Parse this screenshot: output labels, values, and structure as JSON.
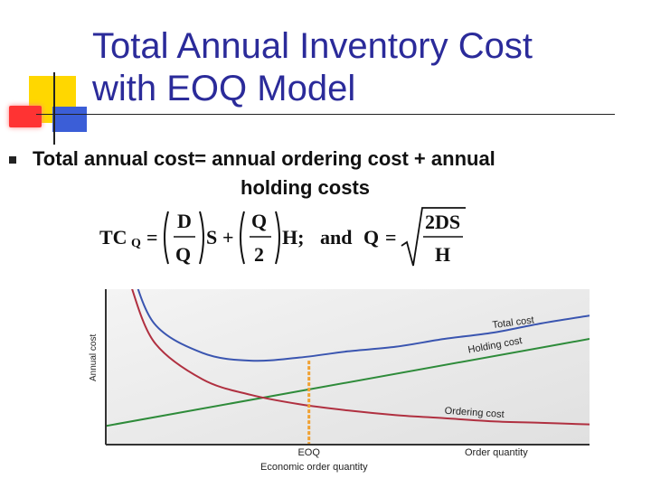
{
  "slide": {
    "title_line1": "Total Annual Inventory Cost",
    "title_line2": "with EOQ Model",
    "bullet_line1": "Total annual cost= annual ordering cost + annual",
    "bullet_line2": "holding  costs"
  },
  "formula": {
    "lhs": "TC",
    "lhs_sub": "Q",
    "eq": "=",
    "f1_num": "D",
    "f1_den": "Q",
    "s": "S",
    "plus": "+",
    "f2_num": "Q",
    "f2_den": "2",
    "h": "H;",
    "and": "and",
    "q": "Q",
    "eq2": "=",
    "root_num": "2DS",
    "root_den": "H"
  },
  "colors": {
    "title": "#2b2b9a",
    "total_cost": "#3a55b0",
    "holding_cost": "#2e8b3a",
    "ordering_cost": "#b03040",
    "eoq_line": "#f0a030",
    "plot_bg": "#eaeaea",
    "axis": "#333333"
  },
  "chart_data": {
    "type": "line",
    "xlabel": "Economic order quantity",
    "ylabel": "Annual cost",
    "x_axis_label": "Order quantity",
    "eoq_label": "EOQ",
    "xlim": [
      0,
      10
    ],
    "ylim": [
      0,
      10
    ],
    "series": [
      {
        "name": "Total cost",
        "x": [
          0.5,
          1,
          2,
          3,
          4,
          5,
          6,
          7,
          8,
          9,
          10
        ],
        "y": [
          11.6,
          7.8,
          5.9,
          5.4,
          5.6,
          6.0,
          6.3,
          6.8,
          7.2,
          7.8,
          8.3
        ]
      },
      {
        "name": "Holding cost",
        "x": [
          0,
          10
        ],
        "y": [
          1.2,
          6.8
        ]
      },
      {
        "name": "Ordering cost",
        "x": [
          0.5,
          1,
          2,
          3,
          4,
          5,
          6,
          7,
          8,
          9,
          10
        ],
        "y": [
          10.4,
          6.6,
          4.2,
          3.2,
          2.6,
          2.2,
          1.9,
          1.7,
          1.5,
          1.4,
          1.3
        ]
      }
    ],
    "eoq_x": 4.2
  }
}
